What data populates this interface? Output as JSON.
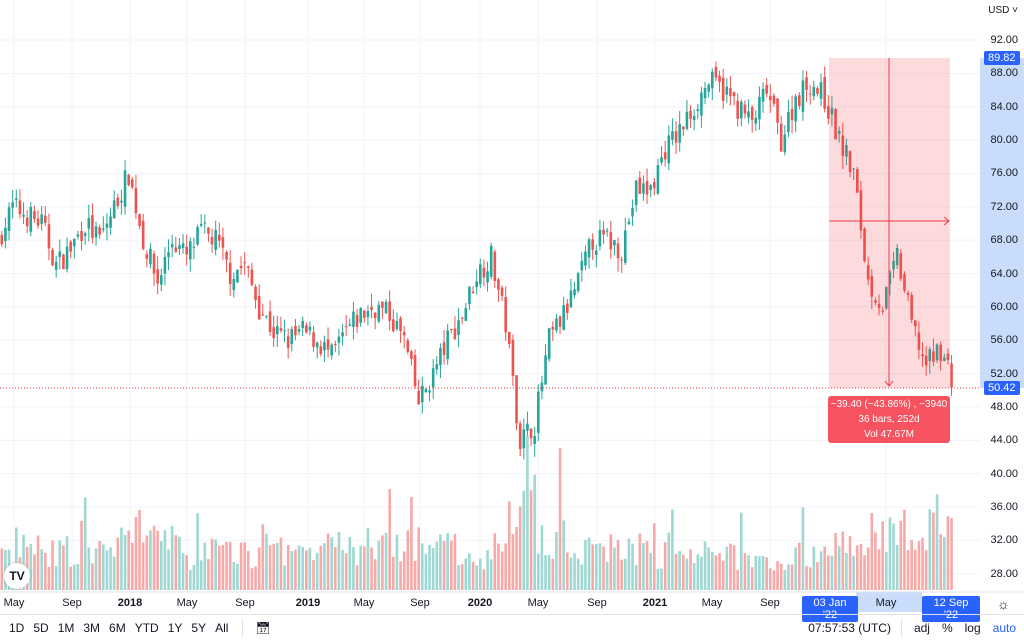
{
  "chart_data": {
    "type": "candlestick",
    "currency": "USD",
    "y_ticks": [
      92,
      88,
      84,
      80,
      76,
      72,
      68,
      64,
      60,
      56,
      52,
      48,
      44,
      40,
      36,
      32,
      28
    ],
    "ylim": [
      26,
      94
    ],
    "x_ticks": [
      "May",
      "Sep",
      "2018",
      "May",
      "Sep",
      "2019",
      "May",
      "Sep",
      "2020",
      "May",
      "Sep",
      "2021",
      "May",
      "Sep",
      "May"
    ],
    "bold_ticks": [
      "2018",
      "2019",
      "2020",
      "2021"
    ],
    "monthly_closes_from": "Apr 2017",
    "monthly_closes": [
      68,
      72,
      71,
      70,
      65,
      67,
      70,
      68,
      72,
      76,
      68,
      63,
      68,
      66,
      69,
      68,
      64,
      65,
      60,
      57,
      56,
      57,
      56,
      54,
      57,
      59,
      60,
      59,
      56,
      48.5,
      52,
      56,
      59,
      64,
      66,
      58,
      44,
      46,
      56,
      59,
      63,
      68,
      68,
      67,
      74,
      74,
      79,
      81,
      84,
      87,
      86,
      84,
      82,
      86,
      80,
      85,
      87,
      85,
      80,
      76,
      63,
      60,
      66,
      58,
      53,
      55,
      50.42
    ],
    "monthly_volume_rel": [
      0.3,
      0.4,
      0.35,
      0.3,
      0.35,
      0.3,
      0.3,
      0.35,
      0.4,
      0.55,
      0.45,
      0.4,
      0.35,
      0.3,
      0.35,
      0.3,
      0.35,
      0.3,
      0.4,
      0.35,
      0.35,
      0.4,
      0.35,
      0.3,
      0.35,
      0.4,
      0.35,
      0.35,
      0.4,
      0.5,
      0.4,
      0.35,
      0.3,
      0.3,
      0.35,
      0.55,
      0.75,
      0.5,
      0.45,
      0.35,
      0.35,
      0.35,
      0.4,
      0.35,
      0.35,
      0.3,
      0.35,
      0.35,
      0.3,
      0.3,
      0.3,
      0.3,
      0.25,
      0.25,
      0.3,
      0.3,
      0.3,
      0.35,
      0.4,
      0.5,
      0.55,
      0.45,
      0.5,
      0.55,
      0.6,
      0.5,
      0.45
    ],
    "colors": {
      "up": "#26a69a",
      "down": "#ef5350",
      "accent": "#2962ff"
    },
    "measure": {
      "start_price": "89.82",
      "end_price": "50.42",
      "start_date": "03 Jan '22",
      "end_date": "12 Sep '22",
      "line1": "−39.40 (−43.86%) , −3940",
      "line2": "36 bars, 252d",
      "line3": "Vol 47.67M"
    }
  },
  "axis": {
    "currency": "USD ˅"
  },
  "logo_text": "TV",
  "toolbar": {
    "ranges": [
      "1D",
      "5D",
      "1M",
      "3M",
      "6M",
      "YTD",
      "1Y",
      "5Y",
      "All"
    ],
    "time": "07:57:53 (UTC)",
    "adj": "adj",
    "percent": "%",
    "log": "log",
    "auto": "auto"
  }
}
